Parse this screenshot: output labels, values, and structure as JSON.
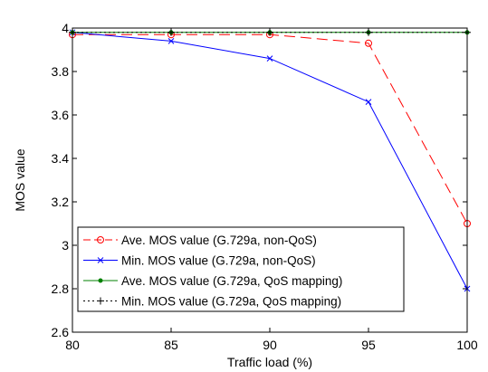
{
  "chart_data": {
    "type": "line",
    "title": "",
    "xlabel": "Traffic load (%)",
    "ylabel": "MOS value",
    "x": [
      80,
      85,
      90,
      95,
      100
    ],
    "xlim": [
      80,
      100
    ],
    "ylim": [
      2.6,
      4
    ],
    "xticks": [
      "80",
      "85",
      "90",
      "95",
      "100"
    ],
    "yticks": [
      "2.6",
      "2.8",
      "3",
      "3.2",
      "3.4",
      "3.6",
      "3.8",
      "4"
    ],
    "grid": false,
    "legend_position": "bottom-left",
    "series": [
      {
        "name": "Ave. MOS value (G.729a, non-QoS)",
        "values": [
          3.97,
          3.97,
          3.97,
          3.93,
          3.1
        ],
        "color": "#ff0000",
        "line": "dashed",
        "marker": "circle"
      },
      {
        "name": "Min. MOS value (G.729a, non-QoS)",
        "values": [
          3.98,
          3.94,
          3.86,
          3.66,
          2.8
        ],
        "color": "#0000ff",
        "line": "solid",
        "marker": "x"
      },
      {
        "name": "Ave. MOS value (G.729a, QoS mapping)",
        "values": [
          3.98,
          3.98,
          3.98,
          3.98,
          3.98
        ],
        "color": "#008000",
        "line": "solid",
        "marker": "dot"
      },
      {
        "name": "Min. MOS value (G.729a, QoS mapping)",
        "values": [
          3.98,
          3.98,
          3.98,
          3.98,
          3.98
        ],
        "color": "#000000",
        "line": "dotted",
        "marker": "plus"
      }
    ]
  }
}
